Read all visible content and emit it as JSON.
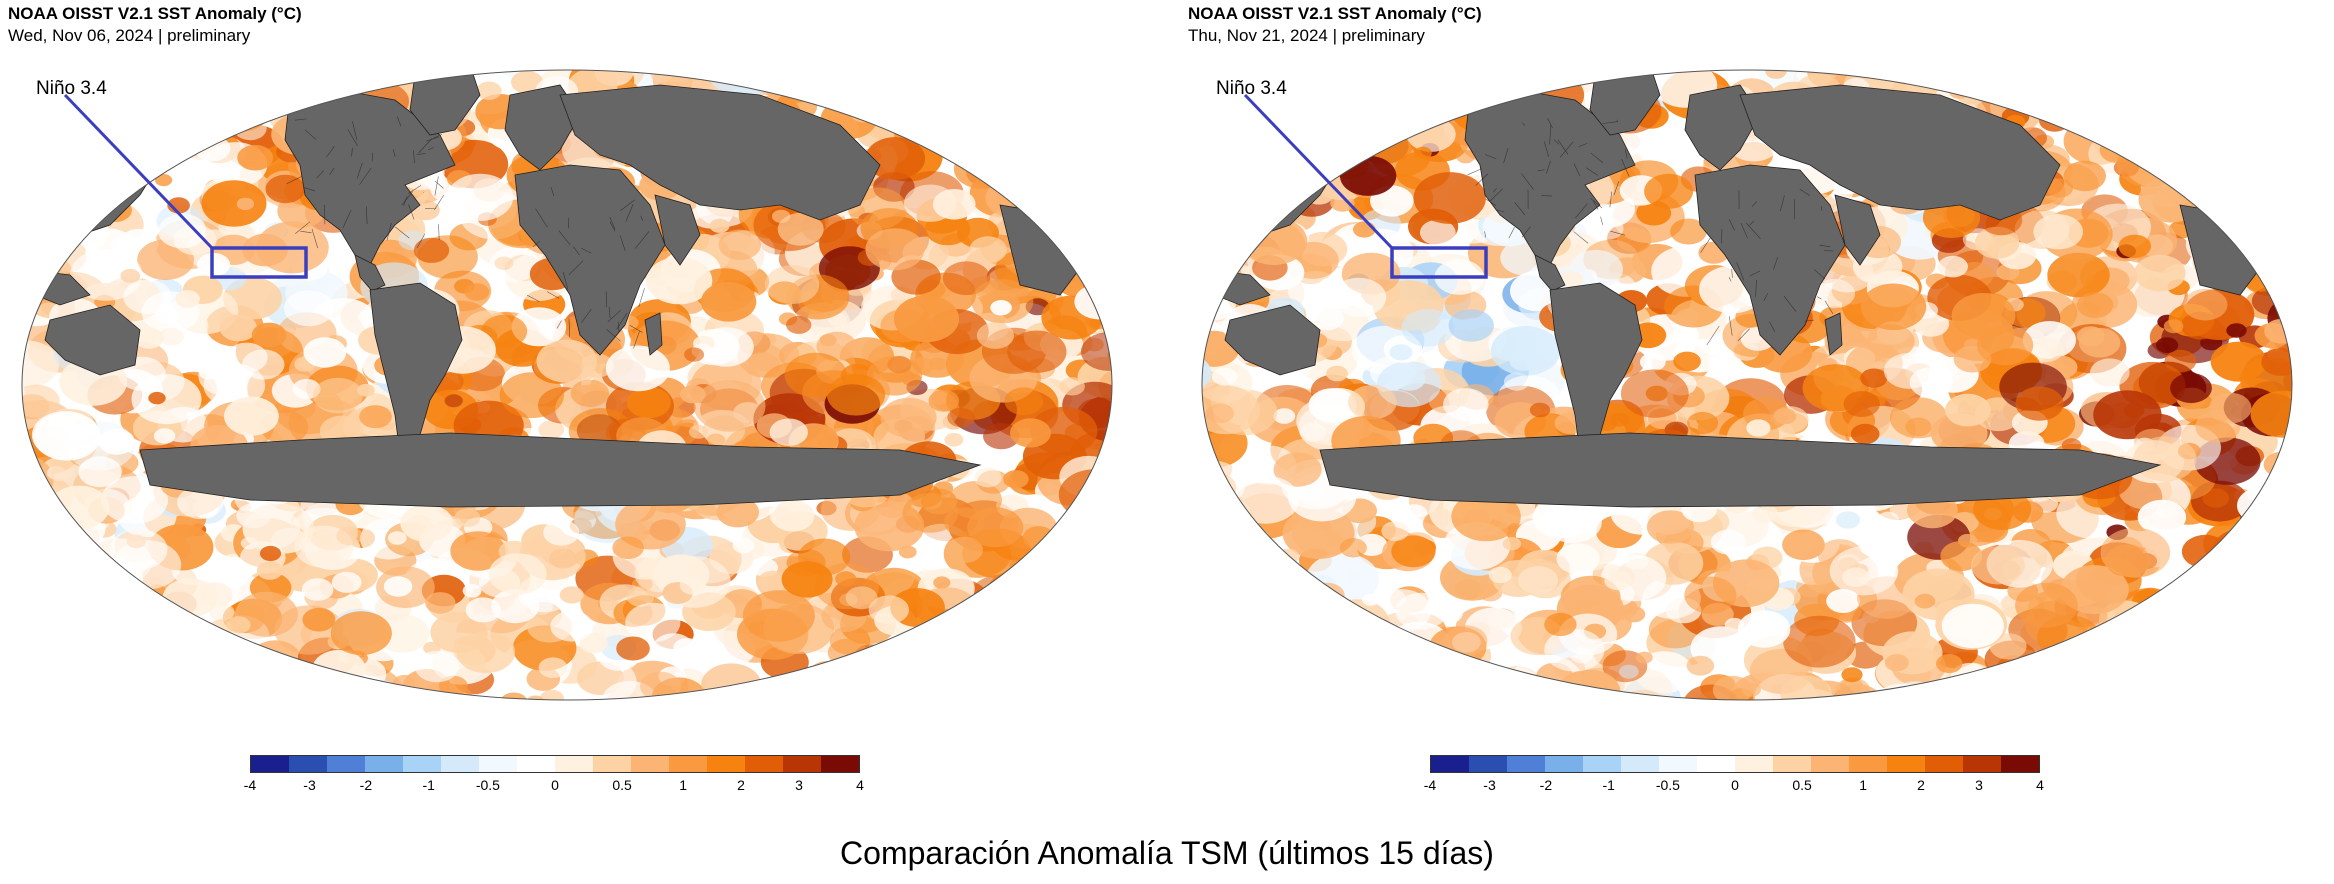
{
  "panels": [
    {
      "title": "NOAA OISST V2.1 SST Anomaly (°C)",
      "subtitle": "Wed, Nov 06, 2024 | preliminary",
      "region_label": "Niño 3.4",
      "variant": "nov06"
    },
    {
      "title": "NOAA OISST V2.1 SST Anomaly (°C)",
      "subtitle": "Thu, Nov 21, 2024 | preliminary",
      "region_label": "Niño 3.4",
      "variant": "nov21"
    }
  ],
  "colorbar": {
    "tick_labels": [
      "-4",
      "-3",
      "-2",
      "-1",
      "-0.5",
      "0",
      "0.5",
      "1",
      "2",
      "3",
      "4"
    ],
    "colors": [
      "#1a1f8f",
      "#2a4fb0",
      "#4f7fd6",
      "#7ab0ea",
      "#a8d2f6",
      "#d4eafb",
      "#f1f8fe",
      "#ffffff",
      "#fff1e0",
      "#fdd3a6",
      "#fbb473",
      "#f99a40",
      "#f6820f",
      "#e15e07",
      "#b83506",
      "#7a0b04"
    ],
    "land_color": "#666666",
    "box_color": "#3b3fbf"
  },
  "footer": {
    "title": "Comparación Anomalía TSM (últimos 15 días)"
  }
}
